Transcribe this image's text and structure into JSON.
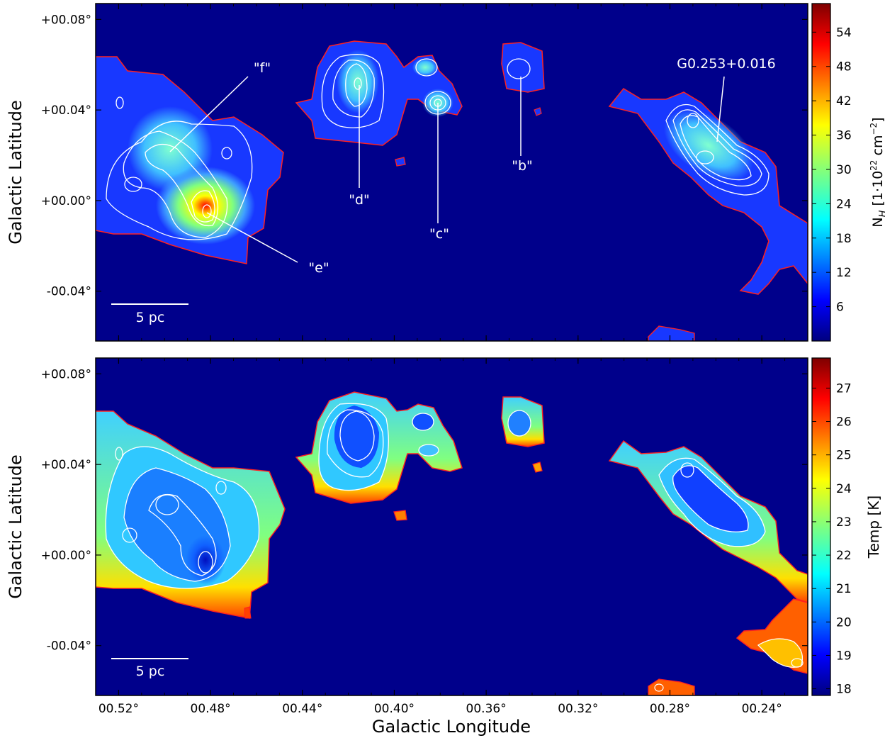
{
  "chart_data": [
    {
      "type": "heatmap",
      "panel": "top",
      "quantity": "column density",
      "xlabel": "",
      "ylabel": "Galactic Latitude",
      "xlim": [
        0.53,
        0.22
      ],
      "ylim": [
        -0.062,
        0.087
      ],
      "y_ticks": [
        "+00.08°",
        "+00.04°",
        "+00.00°",
        "-00.04°"
      ],
      "y_tick_values": [
        0.08,
        0.04,
        0.0,
        -0.04
      ],
      "colorbar": {
        "label": "N_H [1·10^22 cm^-2]",
        "label_main": "N",
        "label_sub": "H",
        "label_rest_1": " [1·10",
        "label_sup1": "22",
        "label_rest_2": " cm",
        "label_sup2": "−2",
        "label_rest_3": "]",
        "range": [
          0,
          59
        ],
        "ticks": [
          "54",
          "48",
          "42",
          "36",
          "30",
          "24",
          "18",
          "12",
          "6"
        ],
        "tick_values": [
          54,
          48,
          42,
          36,
          30,
          24,
          18,
          12,
          6
        ]
      },
      "annotations": [
        {
          "label": "\"f\"",
          "l": 0.499,
          "b": 0.021
        },
        {
          "label": "\"e\"",
          "l": 0.478,
          "b": -0.006
        },
        {
          "label": "\"d\"",
          "l": 0.411,
          "b": 0.051
        },
        {
          "label": "\"c\"",
          "l": 0.377,
          "b": 0.043
        },
        {
          "label": "\"b\"",
          "l": 0.34,
          "b": 0.054
        },
        {
          "label": "G0.253+0.016",
          "l": 0.253,
          "b": 0.023
        }
      ],
      "scale_bar": "5 pc"
    },
    {
      "type": "heatmap",
      "panel": "bottom",
      "quantity": "dust temperature",
      "xlabel": "Galactic Longitude",
      "ylabel": "Galactic Latitude",
      "xlim": [
        0.53,
        0.22
      ],
      "ylim": [
        -0.062,
        0.087
      ],
      "x_ticks": [
        "00.52°",
        "00.48°",
        "00.44°",
        "00.40°",
        "00.36°",
        "00.32°",
        "00.28°",
        "00.24°"
      ],
      "x_tick_values": [
        0.52,
        0.48,
        0.44,
        0.4,
        0.36,
        0.32,
        0.28,
        0.24
      ],
      "y_ticks": [
        "+00.08°",
        "+00.04°",
        "+00.00°",
        "-00.04°"
      ],
      "y_tick_values": [
        0.08,
        0.04,
        0.0,
        -0.04
      ],
      "colorbar": {
        "label": "Temp [K]",
        "range": [
          17.8,
          27.9
        ],
        "ticks": [
          "27",
          "26",
          "25",
          "24",
          "23",
          "22",
          "21",
          "20",
          "19",
          "18"
        ],
        "tick_values": [
          27,
          26,
          25,
          24,
          23,
          22,
          21,
          20,
          19,
          18
        ]
      },
      "scale_bar": "5 pc"
    }
  ],
  "colors": {
    "background": "#00008b",
    "mask_contour": "#ff2020",
    "contour": "#ffffff",
    "colormap": [
      "#00007f",
      "#0000ff",
      "#007fff",
      "#00ffff",
      "#7fff7f",
      "#ffff00",
      "#ff7f00",
      "#ff0000",
      "#7f0000"
    ]
  }
}
